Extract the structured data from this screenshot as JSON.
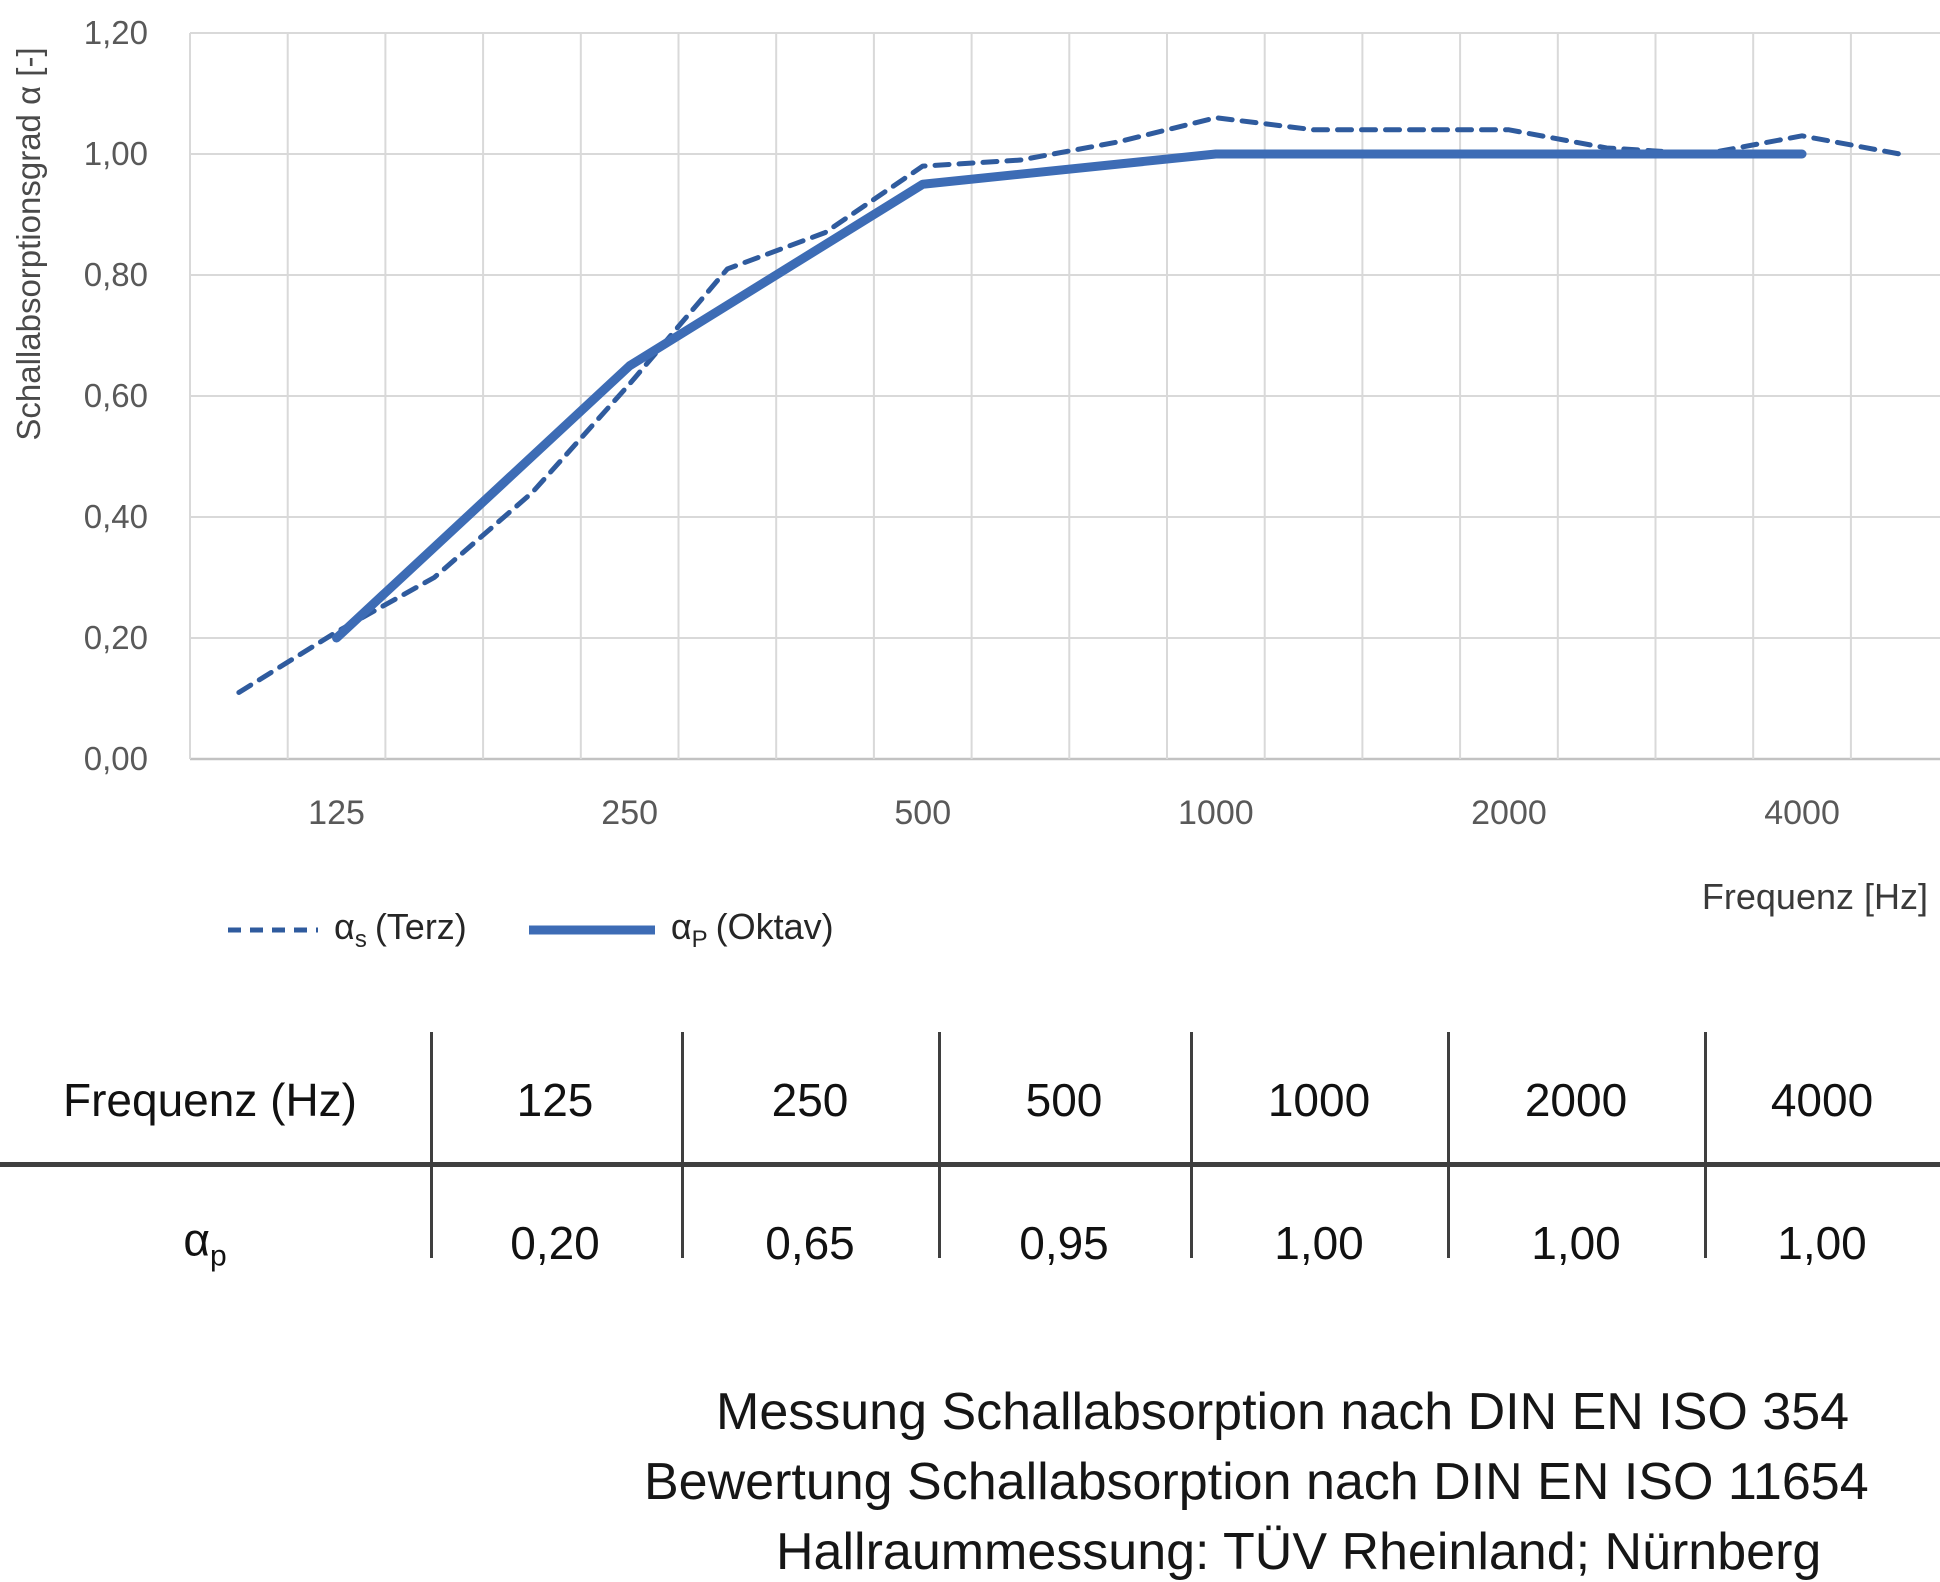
{
  "chart": {
    "y_axis_title": "Schallabsorptionsgrad α [-]",
    "x_axis_title": "Frequenz [Hz]",
    "y_tick_labels": [
      "0,00",
      "0,20",
      "0,40",
      "0,60",
      "0,80",
      "1,00",
      "1,20"
    ],
    "x_tick_labels": [
      "125",
      "250",
      "500",
      "1000",
      "2000",
      "4000"
    ]
  },
  "legend": {
    "terz": {
      "alpha": "α",
      "sub": "s",
      "rest": "(Terz)"
    },
    "oktav": {
      "alpha": "α",
      "sub": "P",
      "rest": "(Oktav)"
    }
  },
  "table": {
    "header_label": "Frequenz (Hz)",
    "header_values": [
      "125",
      "250",
      "500",
      "1000",
      "2000",
      "4000"
    ],
    "row_label": {
      "alpha": "α",
      "sub": "p"
    },
    "row_values": [
      "0,20",
      "0,65",
      "0,95",
      "1,00",
      "1,00",
      "1,00"
    ]
  },
  "footer": {
    "lines": [
      "Messung Schallabsorption nach DIN EN ISO 354",
      "Bewertung Schallabsorption nach DIN EN ISO 11654",
      "Hallraummessung: TÜV Rheinland; Nürnberg"
    ]
  },
  "chart_data": {
    "type": "line",
    "x_scale": "third-octave-band categories (logarithmic frequency)",
    "x_categories_hz": [
      100,
      125,
      160,
      200,
      250,
      315,
      400,
      500,
      630,
      800,
      1000,
      1250,
      1600,
      2000,
      2500,
      3150,
      4000,
      5000
    ],
    "x_tick_labels_shown": [
      "125",
      "250",
      "500",
      "1000",
      "2000",
      "4000"
    ],
    "xlabel": "Frequenz [Hz]",
    "ylabel": "Schallabsorptionsgrad α [-]",
    "ylim": [
      0,
      1.2
    ],
    "y_ticks": [
      0,
      0.2,
      0.4,
      0.6,
      0.8,
      1.0,
      1.2
    ],
    "grid": true,
    "legend_position": "bottom-left",
    "series": [
      {
        "name": "αs (Terz)",
        "style": "dashed",
        "color": "#2F5B9E",
        "x_hz": [
          100,
          125,
          160,
          200,
          250,
          315,
          400,
          500,
          630,
          800,
          1000,
          1250,
          1600,
          2000,
          2500,
          3150,
          4000,
          5000
        ],
        "values": [
          0.11,
          0.21,
          0.3,
          0.44,
          0.62,
          0.81,
          0.87,
          0.98,
          0.99,
          1.02,
          1.06,
          1.04,
          1.04,
          1.04,
          1.01,
          1.0,
          1.03,
          1.0
        ]
      },
      {
        "name": "αP (Oktav)",
        "style": "solid",
        "color": "#3D6CB5",
        "x_hz": [
          125,
          250,
          500,
          1000,
          2000,
          4000
        ],
        "values": [
          0.2,
          0.65,
          0.95,
          1.0,
          1.0,
          1.0
        ]
      }
    ]
  }
}
